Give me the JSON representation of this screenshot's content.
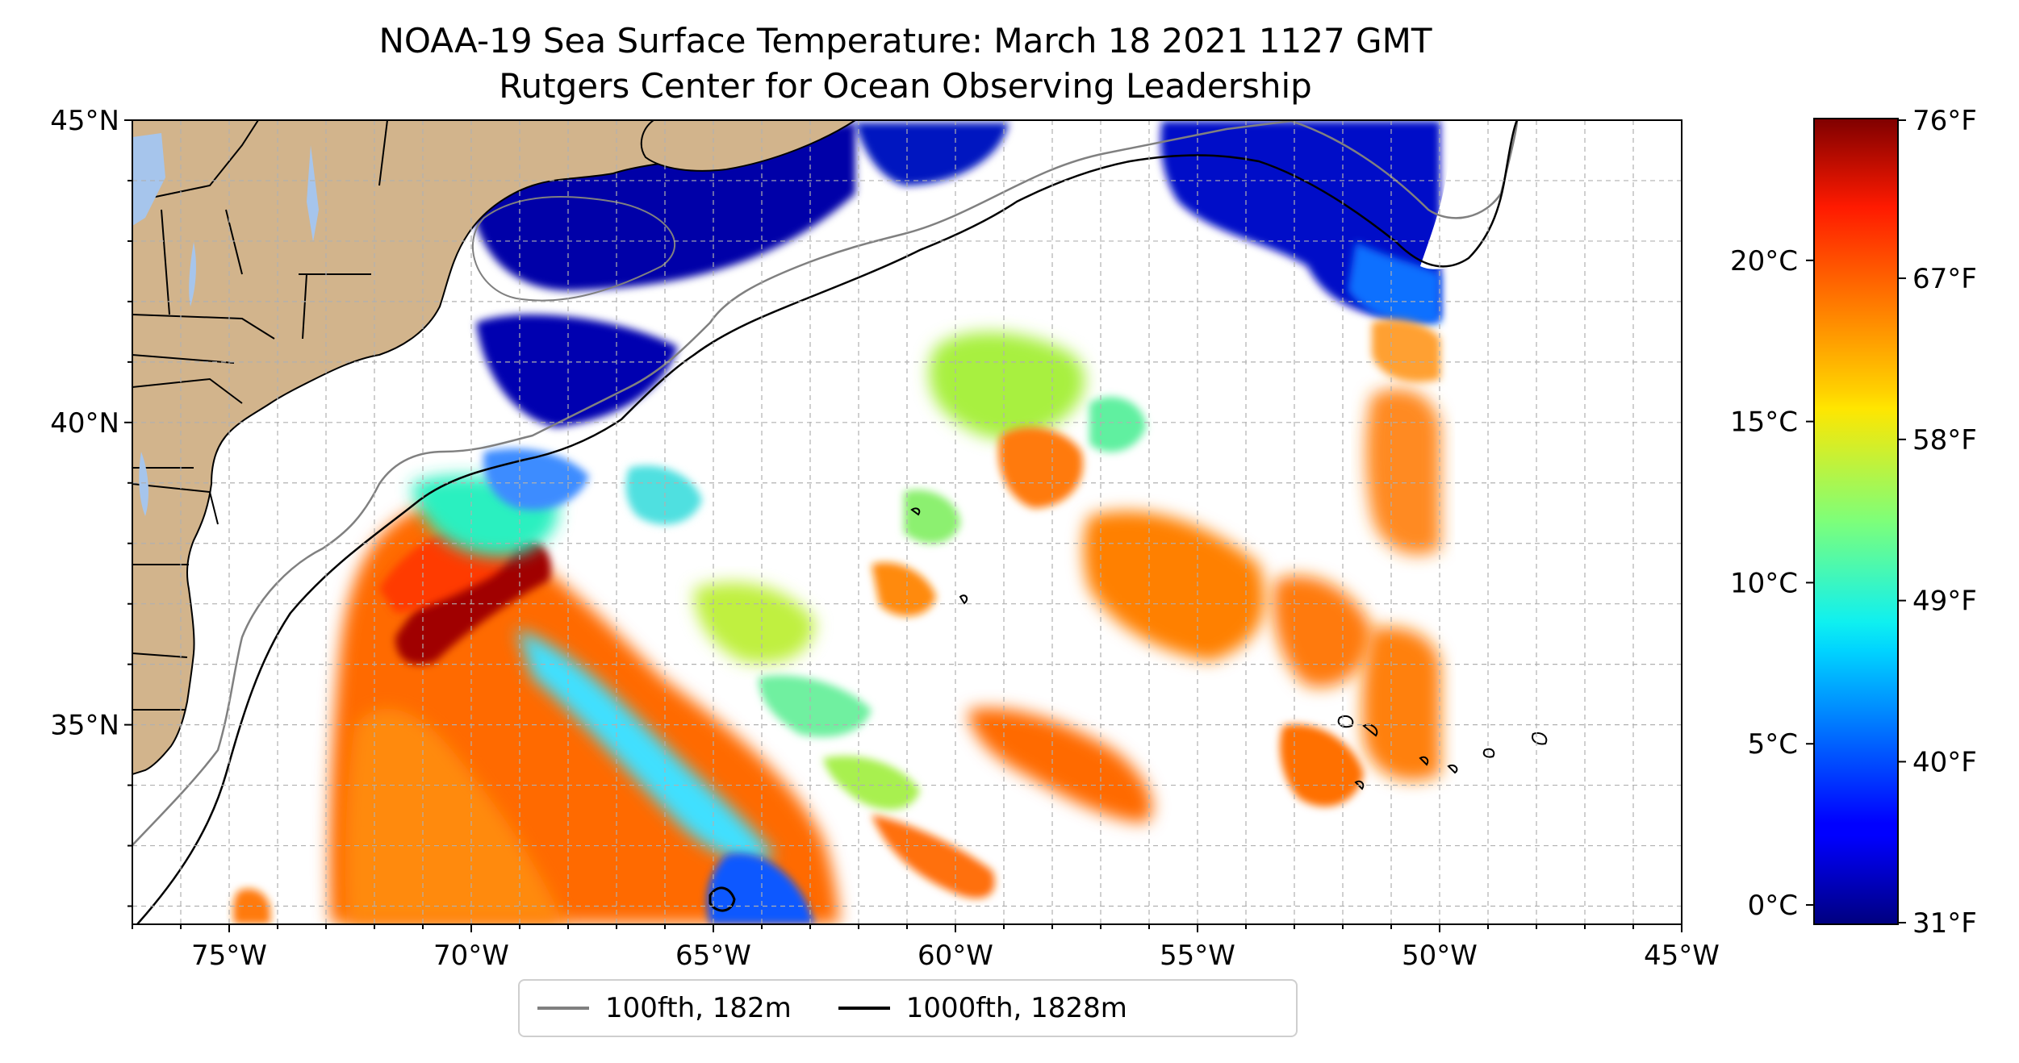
{
  "title_line1": "NOAA-19 Sea Surface Temperature: March 18 2021 1127 GMT",
  "title_line2": "Rutgers Center for Ocean Observing Leadership",
  "lon_ticks": [
    {
      "value": -75,
      "label": "75°W"
    },
    {
      "value": -70,
      "label": "70°W"
    },
    {
      "value": -65,
      "label": "65°W"
    },
    {
      "value": -60,
      "label": "60°W"
    },
    {
      "value": -55,
      "label": "55°W"
    },
    {
      "value": -50,
      "label": "50°W"
    },
    {
      "value": -45,
      "label": "45°W"
    }
  ],
  "lat_ticks": [
    {
      "value": 45,
      "label": "45°N"
    },
    {
      "value": 40,
      "label": "40°N"
    },
    {
      "value": 35,
      "label": "35°N"
    }
  ],
  "map_extent": {
    "lon": [
      -77,
      -45
    ],
    "lat": [
      31.7,
      45
    ]
  },
  "colorbar": {
    "colormap": "jet",
    "range_celsius": [
      -0.6,
      24.4
    ],
    "celsius_ticks": [
      {
        "value": 0,
        "label": "0°C"
      },
      {
        "value": 5,
        "label": "5°C"
      },
      {
        "value": 10,
        "label": "10°C"
      },
      {
        "value": 15,
        "label": "15°C"
      },
      {
        "value": 20,
        "label": "20°C"
      }
    ],
    "fahrenheit_ticks": [
      {
        "value": 31,
        "label": "31°F"
      },
      {
        "value": 40,
        "label": "40°F"
      },
      {
        "value": 49,
        "label": "49°F"
      },
      {
        "value": 58,
        "label": "58°F"
      },
      {
        "value": 67,
        "label": "67°F"
      },
      {
        "value": 76,
        "label": "76°F"
      }
    ]
  },
  "legend": {
    "items": [
      {
        "label": "100fth, 182m",
        "color": "#808080"
      },
      {
        "label": "1000fth, 1828m",
        "color": "#000000"
      }
    ]
  },
  "colors": {
    "land": "#d2b48c",
    "lakes": "#a6c5ec",
    "no_data": "#ffffff",
    "grid": "#b0b0b0"
  }
}
